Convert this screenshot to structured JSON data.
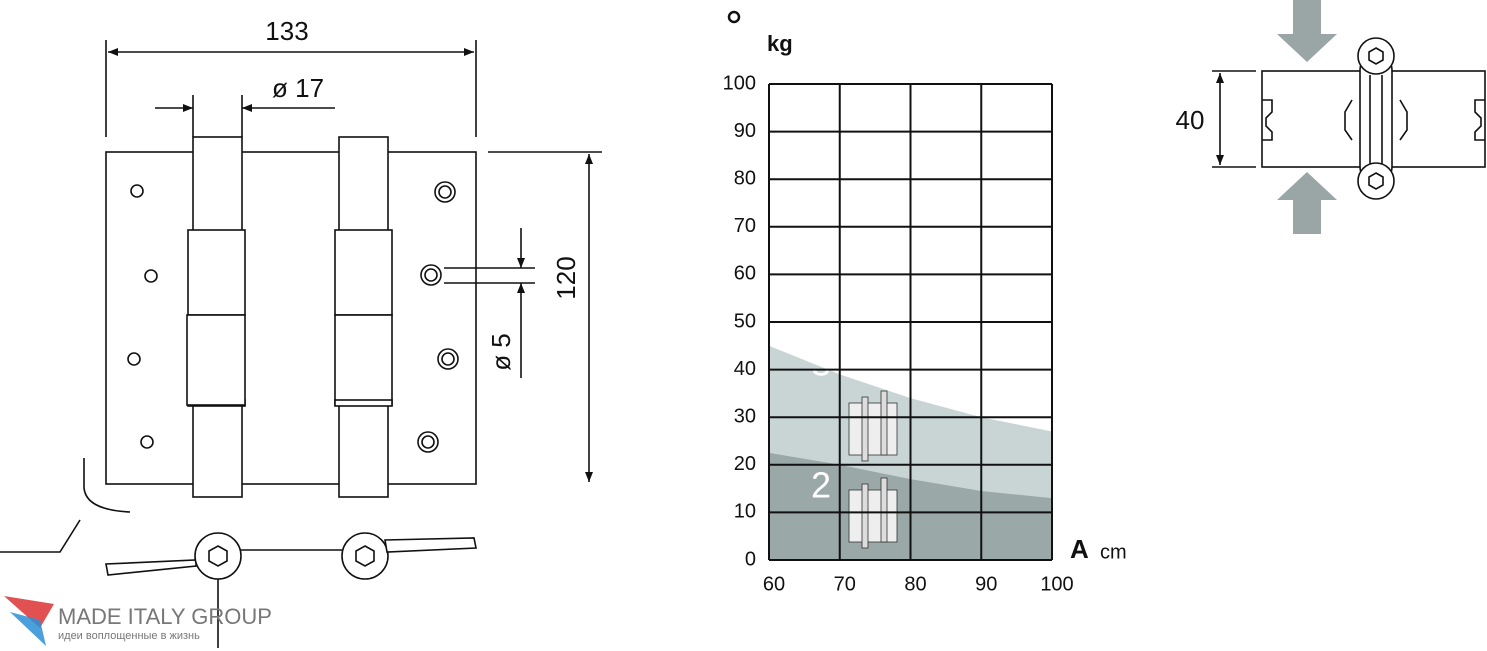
{
  "chart_data": {
    "type": "area",
    "ylabel": "kg",
    "xlabel": "A",
    "xlabel_unit": "cm",
    "x": [
      60,
      70,
      80,
      90,
      100
    ],
    "series": [
      {
        "name": "3",
        "color": "#c9d5d5",
        "values": [
          45,
          39,
          34,
          30,
          27
        ]
      },
      {
        "name": "2",
        "color": "#9ba8a8",
        "values": [
          22.5,
          20,
          17,
          14.5,
          13
        ]
      }
    ],
    "xlim": [
      60,
      100
    ],
    "xticks": [
      60,
      70,
      80,
      90,
      100
    ],
    "ylim": [
      0,
      100
    ],
    "yticks": [
      0,
      10,
      20,
      30,
      40,
      50,
      60,
      70,
      80,
      90,
      100
    ],
    "grid": true
  },
  "drawing": {
    "width_label": "133",
    "knuckle_label": "ø 17",
    "height_label": "120",
    "hole_label": "ø 5",
    "thickness_label": "40"
  },
  "watermark": {
    "brand": "MADE ITALY GROUP",
    "slogan": "идеи воплощенные в жизнь"
  }
}
